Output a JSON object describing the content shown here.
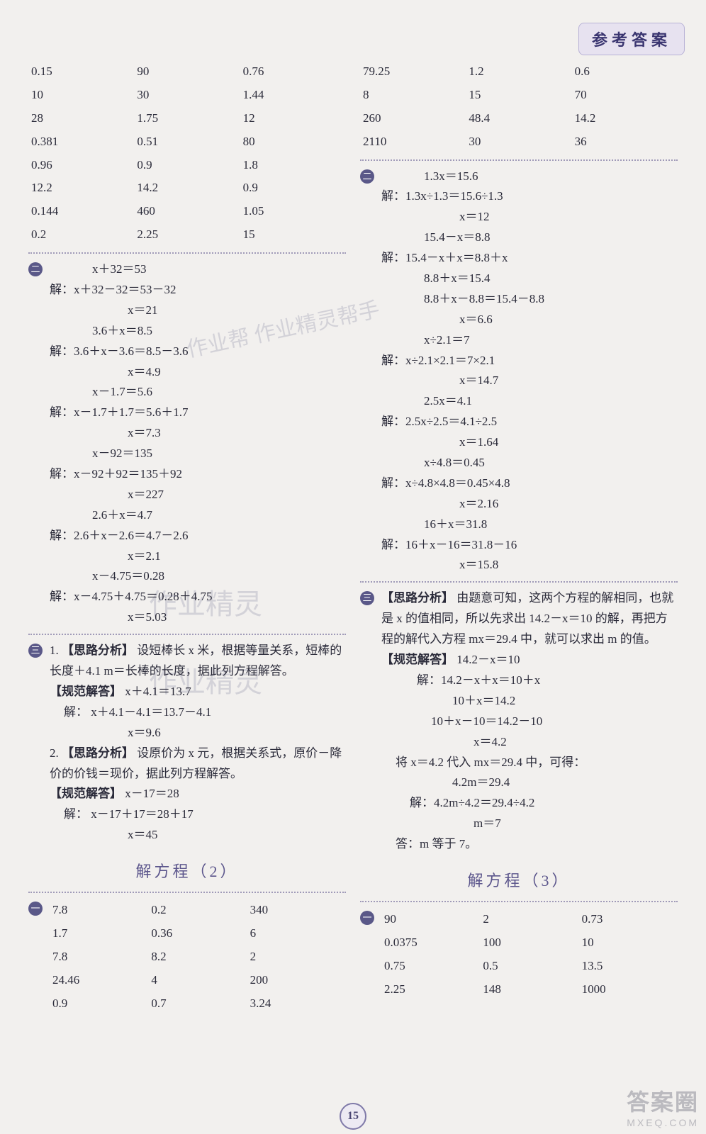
{
  "header": {
    "label": "参考答案"
  },
  "page_number": "15",
  "watermarks": {
    "wm1": "作业帮  作业精灵帮手",
    "wm2": "作业精灵",
    "wm3": "作业精灵"
  },
  "footer_brand": {
    "big": "答案圈",
    "small": "MXEQ.COM"
  },
  "left": {
    "table1": {
      "rows": [
        [
          "0.15",
          "90",
          "0.76"
        ],
        [
          "10",
          "30",
          "1.44"
        ],
        [
          "28",
          "1.75",
          "12"
        ],
        [
          "0.381",
          "0.51",
          "80"
        ],
        [
          "0.96",
          "0.9",
          "1.8"
        ],
        [
          "12.2",
          "14.2",
          "0.9"
        ],
        [
          "0.144",
          "460",
          "1.05"
        ],
        [
          "0.2",
          "2.25",
          "15"
        ]
      ]
    },
    "sec2": {
      "marker": "二",
      "lines": [
        "x＋32＝53",
        "解：x＋32－32＝53－32",
        "x＝21",
        "3.6＋x＝8.5",
        "解：3.6＋x－3.6＝8.5－3.6",
        "x＝4.9",
        "x－1.7＝5.6",
        "解：x－1.7＋1.7＝5.6＋1.7",
        "x＝7.3",
        "x－92＝135",
        "解：x－92＋92＝135＋92",
        "x＝227",
        "2.6＋x＝4.7",
        "解：2.6＋x－2.6＝4.7－2.6",
        "x＝2.1",
        "x－4.75＝0.28",
        "解：x－4.75＋4.75＝0.28＋4.75",
        "x＝5.03"
      ]
    },
    "sec3": {
      "marker": "三",
      "p1": {
        "num": "1.",
        "analysis_label": "【思路分析】",
        "analysis_text": "设短棒长 x 米，根据等量关系，短棒的长度＋4.1 m＝长棒的长度，据此列方程解答。",
        "answer_label": "【规范解答】",
        "lines": [
          "x＋4.1＝13.7",
          "解：  x＋4.1－4.1＝13.7－4.1",
          "x＝9.6"
        ]
      },
      "p2": {
        "num": "2.",
        "analysis_label": "【思路分析】",
        "analysis_text": "设原价为 x 元，根据关系式，原价－降价的价钱＝现价，据此列方程解答。",
        "answer_label": "【规范解答】",
        "lines": [
          "x－17＝28",
          "解：  x－17＋17＝28＋17",
          "x＝45"
        ]
      }
    },
    "title2": "解方程（2）",
    "sec1b": {
      "marker": "一",
      "rows": [
        [
          "7.8",
          "0.2",
          "340"
        ],
        [
          "1.7",
          "0.36",
          "6"
        ],
        [
          "7.8",
          "8.2",
          "2"
        ],
        [
          "24.46",
          "4",
          "200"
        ],
        [
          "0.9",
          "0.7",
          "3.24"
        ]
      ]
    }
  },
  "right": {
    "table1": {
      "rows": [
        [
          "79.25",
          "1.2",
          "0.6"
        ],
        [
          "8",
          "15",
          "70"
        ],
        [
          "260",
          "48.4",
          "14.2"
        ],
        [
          "2110",
          "30",
          "36"
        ]
      ]
    },
    "sec2": {
      "marker": "二",
      "lines": [
        "1.3x＝15.6",
        "解：1.3x÷1.3＝15.6÷1.3",
        "x＝12",
        "15.4－x＝8.8",
        "解：15.4－x＋x＝8.8＋x",
        "8.8＋x＝15.4",
        "8.8＋x－8.8＝15.4－8.8",
        "x＝6.6",
        "x÷2.1＝7",
        "解：x÷2.1×2.1＝7×2.1",
        "x＝14.7",
        "2.5x＝4.1",
        "解：2.5x÷2.5＝4.1÷2.5",
        "x＝1.64",
        "x÷4.8＝0.45",
        "解：x÷4.8×4.8＝0.45×4.8",
        "x＝2.16",
        "16＋x＝31.8",
        "解：16＋x－16＝31.8－16",
        "x＝15.8"
      ]
    },
    "sec3": {
      "marker": "三",
      "analysis_label": "【思路分析】",
      "analysis_text": "由题意可知，这两个方程的解相同，也就是 x 的值相同，所以先求出 14.2－x＝10 的解，再把方程的解代入方程 mx＝29.4 中，就可以求出 m 的值。",
      "answer_label": "【规范解答】",
      "lines": [
        "14.2－x＝10",
        "解：14.2－x＋x＝10＋x",
        "10＋x＝14.2",
        "10＋x－10＝14.2－10",
        "x＝4.2",
        "将 x＝4.2 代入 mx＝29.4 中，可得：",
        "4.2m＝29.4",
        "解：4.2m÷4.2＝29.4÷4.2",
        "m＝7",
        "答：m 等于 7。"
      ]
    },
    "title3": "解方程（3）",
    "sec1c": {
      "marker": "一",
      "rows": [
        [
          "90",
          "2",
          "0.73"
        ],
        [
          "0.0375",
          "100",
          "10"
        ],
        [
          "0.75",
          "0.5",
          "13.5"
        ],
        [
          "2.25",
          "148",
          "1000"
        ]
      ]
    }
  }
}
